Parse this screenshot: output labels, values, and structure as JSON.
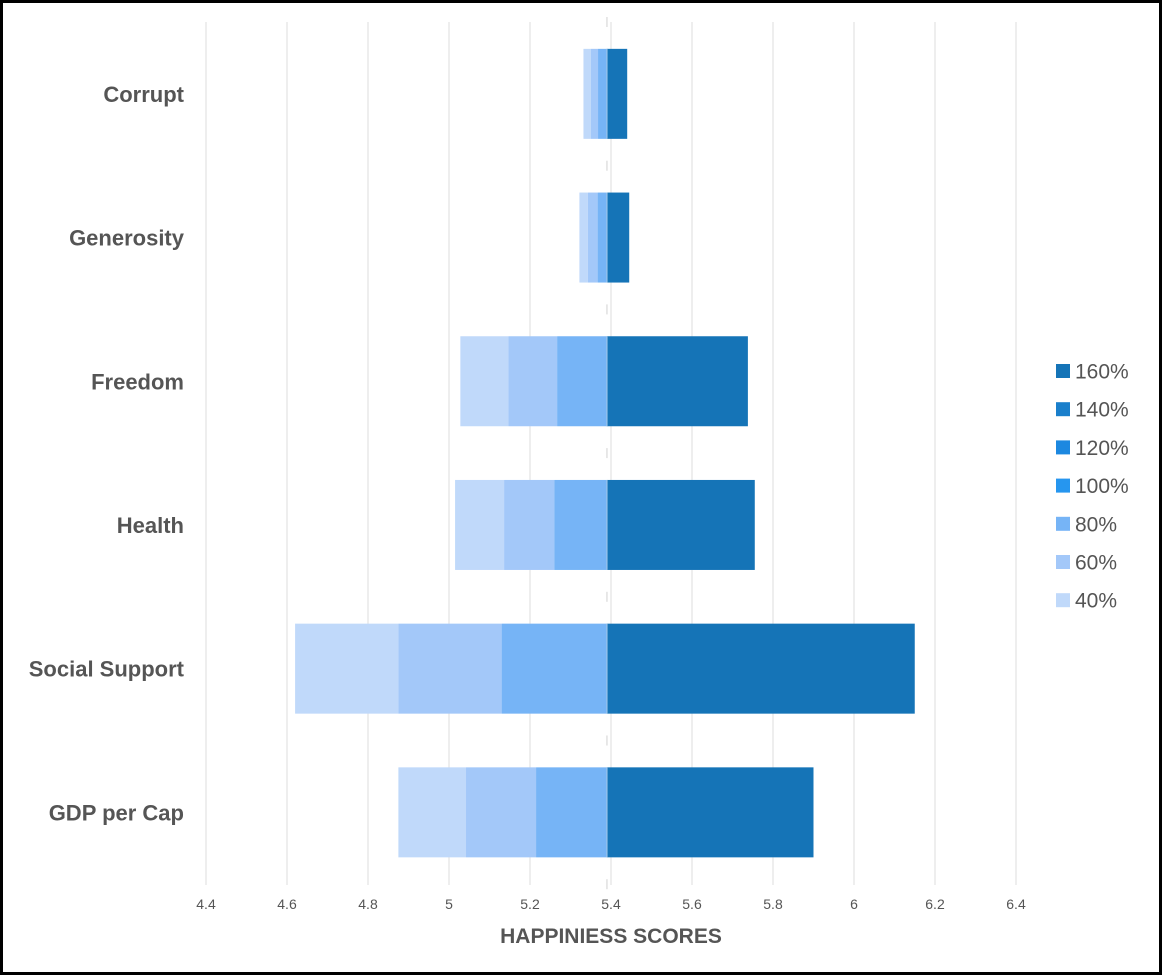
{
  "chart_data": {
    "type": "bar",
    "orientation": "horizontal",
    "stacked": true,
    "title": "",
    "xlabel": "HAPPINIESS SCORES",
    "ylabel": "",
    "xlim": [
      4.3,
      6.6
    ],
    "xticks": [
      4.4,
      4.6,
      4.8,
      5,
      5.2,
      5.4,
      5.6,
      5.8,
      6,
      6.2,
      6.4
    ],
    "xtick_labels": [
      "4.4",
      "4.6",
      "4.8",
      "5",
      "5.2",
      "5.4",
      "5.6",
      "5.8",
      "6",
      "6.2",
      "6.4"
    ],
    "baseline": 5.39,
    "grid": true,
    "legend_position": "right",
    "categories": [
      "GDP per Cap",
      "Social Support",
      "Health",
      "Freedom",
      "Generosity",
      "Corrupt"
    ],
    "series": [
      {
        "name": "40%",
        "color": "#c0d9fa",
        "start": [
          4.875,
          4.62,
          5.015,
          5.028,
          5.322,
          5.332
        ],
        "end": [
          5.042,
          4.875,
          5.136,
          5.147,
          5.343,
          5.35
        ]
      },
      {
        "name": "60%",
        "color": "#a3c8f9",
        "start": [
          5.042,
          4.875,
          5.136,
          5.147,
          5.343,
          5.35
        ],
        "end": [
          5.215,
          5.13,
          5.26,
          5.267,
          5.367,
          5.368
        ]
      },
      {
        "name": "80%",
        "color": "#76b4f6",
        "start": [
          5.215,
          5.13,
          5.26,
          5.267,
          5.367,
          5.368
        ],
        "end": [
          5.39,
          5.39,
          5.39,
          5.39,
          5.39,
          5.39
        ]
      },
      {
        "name": "100%",
        "color": "#2696ef",
        "start": [
          5.39,
          5.39,
          5.39,
          5.39,
          5.39,
          5.39
        ],
        "end": [
          5.39,
          5.39,
          5.39,
          5.39,
          5.39,
          5.39
        ]
      },
      {
        "name": "120%",
        "color": "#1c88e0",
        "start": [
          5.39,
          5.39,
          5.39,
          5.39,
          5.39,
          5.39
        ],
        "end": [
          5.39,
          5.39,
          5.39,
          5.39,
          5.39,
          5.39
        ]
      },
      {
        "name": "140%",
        "color": "#1a7fcb",
        "start": [
          5.39,
          5.39,
          5.39,
          5.39,
          5.39,
          5.39
        ],
        "end": [
          5.39,
          5.39,
          5.39,
          5.39,
          5.39,
          5.39
        ]
      },
      {
        "name": "160%",
        "color": "#1574b7",
        "start": [
          5.39,
          5.39,
          5.39,
          5.39,
          5.39,
          5.39
        ],
        "end": [
          5.9,
          6.15,
          5.755,
          5.738,
          5.445,
          5.44
        ]
      }
    ],
    "legend_order": [
      "160%",
      "140%",
      "120%",
      "100%",
      "80%",
      "60%",
      "40%"
    ]
  }
}
